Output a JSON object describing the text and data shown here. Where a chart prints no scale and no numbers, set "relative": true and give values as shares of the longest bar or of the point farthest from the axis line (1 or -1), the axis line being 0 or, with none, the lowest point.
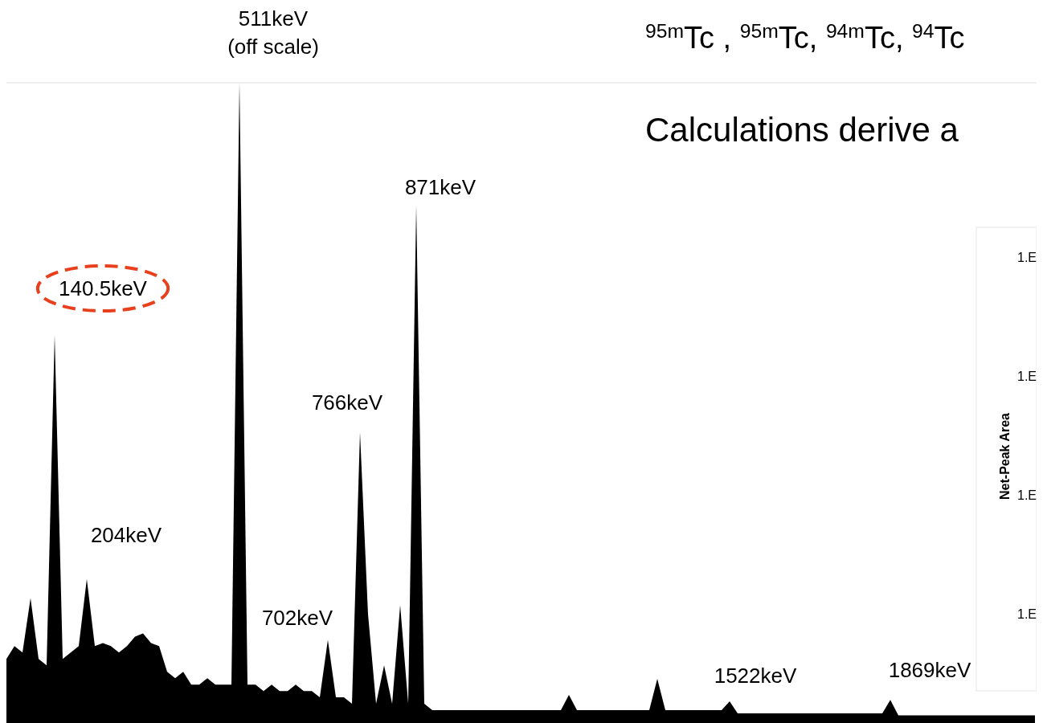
{
  "chart_data": {
    "type": "area",
    "relative": true,
    "color": "#000000",
    "categories": [
      null,
      null,
      null,
      null,
      null,
      null,
      null,
      null,
      null,
      null,
      null,
      null,
      null,
      null,
      null,
      null,
      null,
      null,
      null,
      null,
      null,
      null,
      null,
      null,
      null,
      null,
      null,
      null,
      null,
      null,
      null,
      null,
      null,
      null,
      null,
      null,
      null,
      null,
      null,
      null,
      null,
      null,
      null,
      null,
      null,
      null,
      null,
      null,
      null,
      null,
      null,
      null,
      null,
      null,
      null,
      null,
      null,
      null,
      null,
      null,
      null,
      null,
      null,
      null,
      null,
      null,
      null,
      null,
      null,
      null,
      null,
      null,
      null,
      null,
      null,
      null,
      null,
      null,
      null,
      null,
      null,
      null,
      null,
      null,
      null,
      null,
      null,
      null,
      null,
      null,
      null,
      null,
      null,
      null,
      null,
      null,
      null,
      null,
      null,
      null,
      null,
      null,
      null,
      null,
      null,
      null,
      null,
      null,
      null,
      null,
      null,
      null,
      null,
      null,
      null,
      null,
      null,
      null,
      null,
      null,
      null,
      null,
      null,
      null,
      null,
      null,
      null,
      null,
      null
    ],
    "values": [
      0.1,
      0.12,
      0.11,
      0.195,
      0.1,
      0.09,
      0.606,
      0.1,
      0.11,
      0.12,
      0.225,
      0.12,
      0.125,
      0.12,
      0.11,
      0.12,
      0.135,
      0.14,
      0.125,
      0.12,
      0.08,
      0.07,
      0.08,
      0.06,
      0.06,
      0.07,
      0.06,
      0.06,
      0.06,
      1,
      0.06,
      0.06,
      0.05,
      0.06,
      0.05,
      0.05,
      0.06,
      0.05,
      0.05,
      0.04,
      0.13,
      0.04,
      0.04,
      0.03,
      0.454,
      0.17,
      0.03,
      0.09,
      0.03,
      0.184,
      0.03,
      0.809,
      0.03,
      0.02,
      0.02,
      0.02,
      0.02,
      0.02,
      0.02,
      0.02,
      0.02,
      0.02,
      0.02,
      0.02,
      0.02,
      0.02,
      0.02,
      0.02,
      0.02,
      0.02,
      0.044,
      0.02,
      0.02,
      0.02,
      0.02,
      0.02,
      0.02,
      0.02,
      0.02,
      0.02,
      0.02,
      0.069,
      0.02,
      0.02,
      0.02,
      0.02,
      0.02,
      0.02,
      0.02,
      0.02,
      0.034,
      0.015,
      0.015,
      0.015,
      0.015,
      0.015,
      0.015,
      0.015,
      0.015,
      0.015,
      0.015,
      0.015,
      0.015,
      0.015,
      0.015,
      0.015,
      0.015,
      0.015,
      0.015,
      0.015,
      0.036,
      0.012,
      0.012,
      0.012,
      0.012,
      0.012,
      0.012,
      0.012,
      0.012,
      0.012,
      0.012,
      0.012,
      0.012,
      0.012,
      0.012,
      0.012,
      0.012,
      0.012,
      0.012
    ],
    "annotations": [
      "140.5keV",
      "204keV",
      "511keV\n(off scale)",
      "702keV",
      "766keV",
      "871keV",
      "1522keV",
      "1869keV",
      "$^{95m}$Tc , $^{95m}$Tc, $^{94m}$Tc, $^{94}$Tc",
      "Calculations derive  a",
      "Net-Peak Area",
      "1.E",
      "1.E",
      "1.E",
      "1.E"
    ]
  }
}
